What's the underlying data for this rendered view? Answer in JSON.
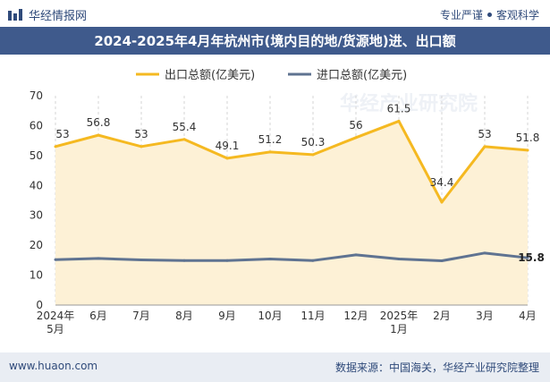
{
  "header": {
    "brand": "华经情报网",
    "tagline_left": "专业严谨",
    "tagline_right": "客观科学"
  },
  "title": "2024-2025年4月年杭州市(境内目的地/货源地)进、出口额",
  "footer": {
    "website": "www.huaon.com",
    "source": "数据来源：中国海关，华经产业研究院整理"
  },
  "watermark": "华经产业研究院",
  "colors": {
    "export": "#f5b921",
    "export_fill": "#fdf1d6",
    "import": "#5f7391",
    "title_bg": "#3f5a8c"
  },
  "chart_data": {
    "type": "line",
    "categories": [
      "2024年\n5月",
      "6月",
      "7月",
      "8月",
      "9月",
      "10月",
      "11月",
      "12月",
      "2025年\n1月",
      "2月",
      "3月",
      "4月"
    ],
    "series": [
      {
        "name": "出口总额(亿美元)",
        "values": [
          53,
          56.8,
          53,
          55.4,
          49.1,
          51.2,
          50.3,
          56,
          61.5,
          34.4,
          53,
          51.8
        ],
        "area": true
      },
      {
        "name": "进口总额(亿美元)",
        "values": [
          15.2,
          15.6,
          15.1,
          14.9,
          14.9,
          15.4,
          14.9,
          16.8,
          15.4,
          14.8,
          17.4,
          15.8
        ]
      }
    ],
    "data_labels": {
      "出口总额(亿美元)": [
        "53",
        "56.8",
        "53",
        "55.4",
        "49.1",
        "51.2",
        "50.3",
        "56",
        "61.5",
        "34.4",
        "53",
        "51.8"
      ],
      "进口总额(亿美元)": [
        "",
        "",
        "",
        "",
        "",
        "",
        "",
        "",
        "",
        "",
        "",
        "15.8"
      ]
    },
    "ylim": [
      0,
      70
    ],
    "yticks": [
      0,
      10,
      20,
      30,
      40,
      50,
      60,
      70
    ],
    "legend_position": "top-center",
    "grid": "vertical-dashed"
  }
}
